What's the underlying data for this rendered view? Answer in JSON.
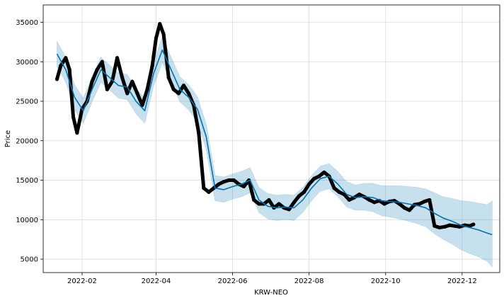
{
  "chart_data": {
    "type": "line",
    "title": "",
    "xlabel": "KRW-NEO",
    "ylabel": "Price",
    "xlim": [
      "2022-01-01",
      "2022-12-31"
    ],
    "ylim": [
      3300,
      37200
    ],
    "grid": true,
    "x_ticks": [
      "2022-02-01",
      "2022-04-01",
      "2022-06-01",
      "2022-08-01",
      "2022-10-01",
      "2022-12-01"
    ],
    "x_tick_labels": [
      "2022-02",
      "2022-04",
      "2022-06",
      "2022-08",
      "2022-10",
      "2022-12"
    ],
    "y_ticks": [
      5000,
      10000,
      15000,
      20000,
      25000,
      30000,
      35000
    ],
    "y_tick_labels": [
      "5000",
      "10000",
      "15000",
      "20000",
      "25000",
      "30000",
      "35000"
    ],
    "colors": {
      "observed": "#000000",
      "forecast": "#0072B2",
      "band": "#0072B2"
    },
    "series": [
      {
        "role": "observed",
        "x": [
          "2022-01-12",
          "2022-01-15",
          "2022-01-19",
          "2022-01-22",
          "2022-01-25",
          "2022-01-28",
          "2022-02-01",
          "2022-02-05",
          "2022-02-09",
          "2022-02-13",
          "2022-02-17",
          "2022-02-21",
          "2022-02-25",
          "2022-03-01",
          "2022-03-05",
          "2022-03-09",
          "2022-03-13",
          "2022-03-17",
          "2022-03-21",
          "2022-03-25",
          "2022-03-29",
          "2022-04-01",
          "2022-04-04",
          "2022-04-07",
          "2022-04-11",
          "2022-04-15",
          "2022-04-19",
          "2022-04-23",
          "2022-04-27",
          "2022-05-01",
          "2022-05-05",
          "2022-05-09",
          "2022-05-13",
          "2022-05-17",
          "2022-05-21",
          "2022-05-25",
          "2022-05-29",
          "2022-06-02",
          "2022-06-06",
          "2022-06-10",
          "2022-06-14",
          "2022-06-18",
          "2022-06-22",
          "2022-06-26",
          "2022-06-30",
          "2022-07-04",
          "2022-07-08",
          "2022-07-12",
          "2022-07-16",
          "2022-07-20",
          "2022-07-24",
          "2022-07-28",
          "2022-08-01",
          "2022-08-05",
          "2022-08-09",
          "2022-08-13",
          "2022-08-17",
          "2022-08-21",
          "2022-08-25",
          "2022-08-29",
          "2022-09-02",
          "2022-09-06",
          "2022-09-10",
          "2022-09-14",
          "2022-09-18",
          "2022-09-22",
          "2022-09-26",
          "2022-09-30",
          "2022-10-04",
          "2022-10-08",
          "2022-10-12",
          "2022-10-16",
          "2022-10-20",
          "2022-10-24",
          "2022-10-28",
          "2022-11-01",
          "2022-11-05",
          "2022-11-09",
          "2022-11-13",
          "2022-11-17",
          "2022-11-21",
          "2022-11-25",
          "2022-11-29",
          "2022-12-03",
          "2022-12-07",
          "2022-12-10"
        ],
        "y": [
          27800,
          29500,
          30500,
          29000,
          23000,
          21000,
          24000,
          25000,
          27500,
          29000,
          30000,
          26500,
          27500,
          30500,
          28000,
          26000,
          27500,
          26000,
          24500,
          26500,
          29500,
          33000,
          34800,
          33500,
          28000,
          26500,
          26000,
          27000,
          26000,
          24500,
          21000,
          14000,
          13500,
          14000,
          14500,
          14800,
          15000,
          15000,
          14500,
          14200,
          15000,
          12500,
          12000,
          12000,
          12500,
          11500,
          12000,
          11500,
          11300,
          12200,
          13000,
          13500,
          14500,
          15200,
          15500,
          16000,
          15500,
          14000,
          13500,
          13200,
          12500,
          12800,
          13200,
          12900,
          12500,
          12200,
          12400,
          12000,
          12300,
          12400,
          12000,
          11500,
          11200,
          11900,
          12000,
          12300,
          12500,
          9200,
          9000,
          9100,
          9300,
          9200,
          9100,
          9300,
          9200,
          9400
        ]
      },
      {
        "role": "forecast",
        "x": [
          "2022-01-12",
          "2022-01-19",
          "2022-01-26",
          "2022-02-02",
          "2022-02-09",
          "2022-02-16",
          "2022-02-23",
          "2022-03-02",
          "2022-03-09",
          "2022-03-16",
          "2022-03-23",
          "2022-03-30",
          "2022-04-06",
          "2022-04-13",
          "2022-04-20",
          "2022-04-27",
          "2022-05-04",
          "2022-05-11",
          "2022-05-18",
          "2022-05-25",
          "2022-06-01",
          "2022-06-08",
          "2022-06-15",
          "2022-06-22",
          "2022-06-29",
          "2022-07-06",
          "2022-07-13",
          "2022-07-20",
          "2022-07-27",
          "2022-08-03",
          "2022-08-10",
          "2022-08-17",
          "2022-08-24",
          "2022-08-31",
          "2022-09-07",
          "2022-09-14",
          "2022-09-21",
          "2022-09-28",
          "2022-10-05",
          "2022-10-12",
          "2022-10-19",
          "2022-10-26",
          "2022-11-02",
          "2022-11-09",
          "2022-11-16",
          "2022-11-23",
          "2022-11-30",
          "2022-12-07",
          "2022-12-14",
          "2022-12-21",
          "2022-12-25"
        ],
        "y": [
          31000,
          29000,
          25500,
          23800,
          26500,
          29000,
          28000,
          27000,
          26800,
          25000,
          23800,
          28500,
          31500,
          29000,
          26500,
          25500,
          24000,
          20500,
          14000,
          13800,
          14200,
          14500,
          15000,
          12500,
          11700,
          11500,
          11600,
          11500,
          12500,
          14000,
          15200,
          15500,
          14500,
          13200,
          12800,
          12900,
          12800,
          12400,
          12300,
          12200,
          12000,
          11800,
          11500,
          10800,
          10200,
          9800,
          9300,
          9000,
          8700,
          8300,
          8100
        ]
      },
      {
        "role": "band",
        "x": [
          "2022-01-12",
          "2022-01-19",
          "2022-01-26",
          "2022-02-02",
          "2022-02-09",
          "2022-02-16",
          "2022-02-23",
          "2022-03-02",
          "2022-03-09",
          "2022-03-16",
          "2022-03-23",
          "2022-03-30",
          "2022-04-06",
          "2022-04-13",
          "2022-04-20",
          "2022-04-27",
          "2022-05-04",
          "2022-05-11",
          "2022-05-18",
          "2022-05-25",
          "2022-06-01",
          "2022-06-08",
          "2022-06-15",
          "2022-06-22",
          "2022-06-29",
          "2022-07-06",
          "2022-07-13",
          "2022-07-20",
          "2022-07-27",
          "2022-08-03",
          "2022-08-10",
          "2022-08-17",
          "2022-08-24",
          "2022-08-31",
          "2022-09-07",
          "2022-09-14",
          "2022-09-21",
          "2022-09-28",
          "2022-10-05",
          "2022-10-12",
          "2022-10-19",
          "2022-10-26",
          "2022-11-02",
          "2022-11-09",
          "2022-11-16",
          "2022-11-23",
          "2022-11-30",
          "2022-12-07",
          "2022-12-14",
          "2022-12-21",
          "2022-12-25"
        ],
        "upper": [
          32600,
          30600,
          27100,
          25400,
          28100,
          30600,
          29600,
          28600,
          28400,
          26600,
          25400,
          30100,
          33100,
          30600,
          28100,
          27100,
          25600,
          22100,
          15600,
          15400,
          15800,
          16100,
          16600,
          14100,
          13300,
          13100,
          13200,
          13100,
          14100,
          15600,
          16800,
          17100,
          16100,
          14800,
          14400,
          14600,
          14600,
          14300,
          14300,
          14300,
          14200,
          14100,
          13900,
          13400,
          12900,
          12700,
          12400,
          12300,
          12100,
          11900,
          12400
        ],
        "lower": [
          29400,
          27400,
          23900,
          22200,
          24900,
          27400,
          26400,
          25400,
          25200,
          23400,
          22200,
          26900,
          29900,
          27400,
          24900,
          23900,
          22400,
          18900,
          12400,
          12200,
          12600,
          12900,
          13400,
          10900,
          10100,
          9900,
          10000,
          9900,
          10900,
          12400,
          13600,
          13900,
          12900,
          11600,
          11200,
          11200,
          11000,
          10500,
          10300,
          10100,
          9800,
          9500,
          9100,
          8200,
          7500,
          6900,
          6200,
          5700,
          5300,
          4700,
          4000
        ]
      }
    ]
  }
}
